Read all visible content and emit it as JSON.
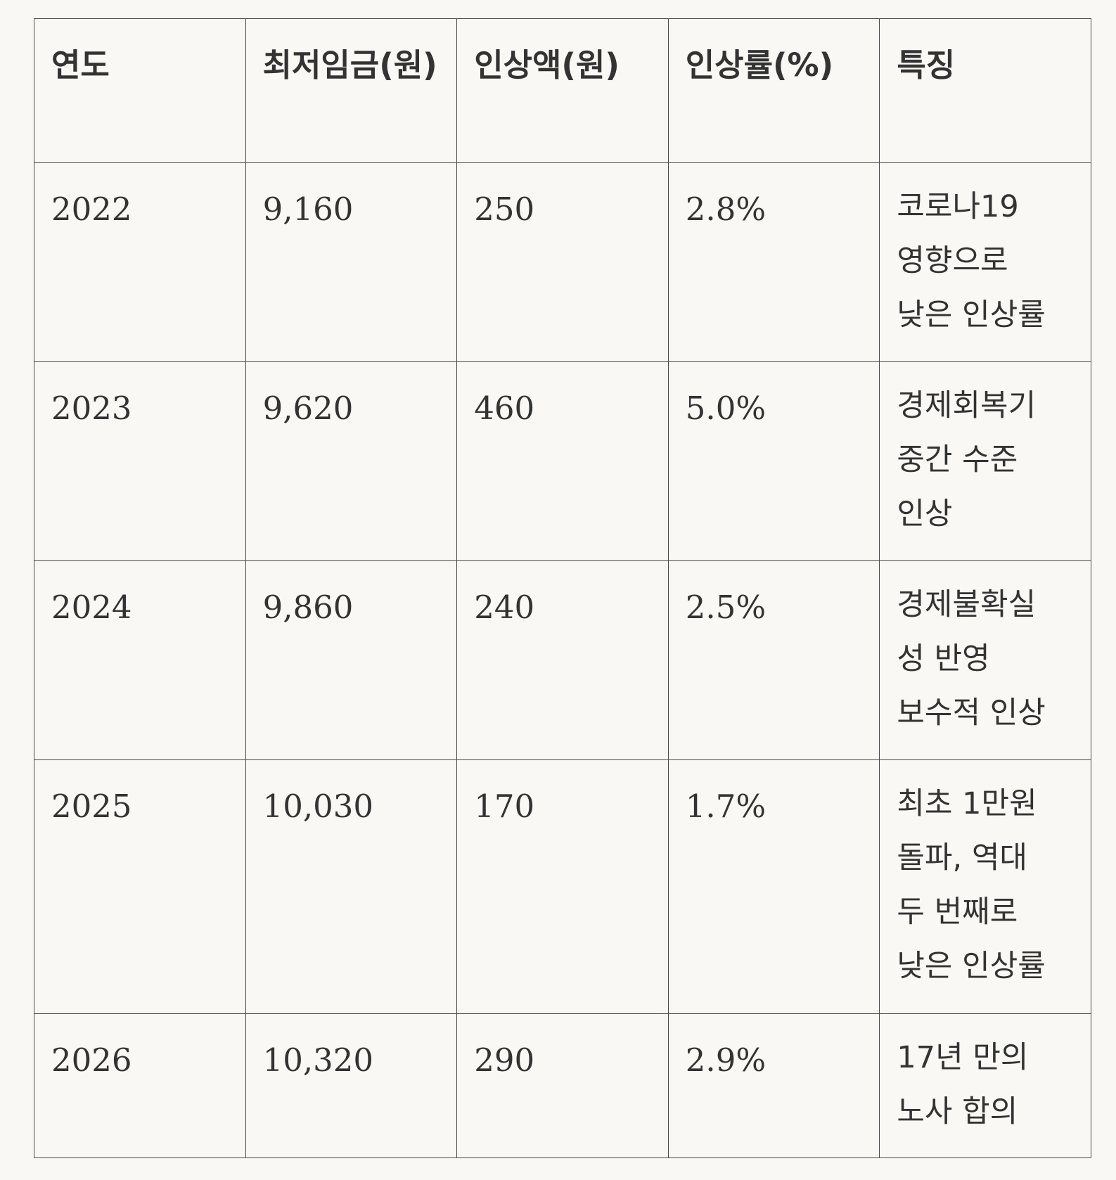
{
  "table": {
    "headers": [
      "연도",
      "최저임금(원)",
      "인상액(원)",
      "인상률(%)",
      "특징"
    ],
    "rows": [
      {
        "year": "2022",
        "wage": "9,160",
        "increase": "250",
        "rate": "2.8%",
        "note": [
          "코로나19",
          "영향으로",
          "낮은 인상률"
        ]
      },
      {
        "year": "2023",
        "wage": "9,620",
        "increase": "460",
        "rate": "5.0%",
        "note": [
          "경제회복기",
          "중간 수준",
          "인상"
        ]
      },
      {
        "year": "2024",
        "wage": "9,860",
        "increase": "240",
        "rate": "2.5%",
        "note": [
          "경제불확실",
          "성 반영",
          "보수적 인상"
        ]
      },
      {
        "year": "2025",
        "wage": "10,030",
        "increase": "170",
        "rate": "1.7%",
        "note": [
          "최초 1만원",
          "돌파, 역대",
          "두 번째로",
          "낮은 인상률"
        ]
      },
      {
        "year": "2026",
        "wage": "10,320",
        "increase": "290",
        "rate": "2.9%",
        "note": [
          "17년 만의",
          "노사 합의"
        ]
      }
    ]
  }
}
